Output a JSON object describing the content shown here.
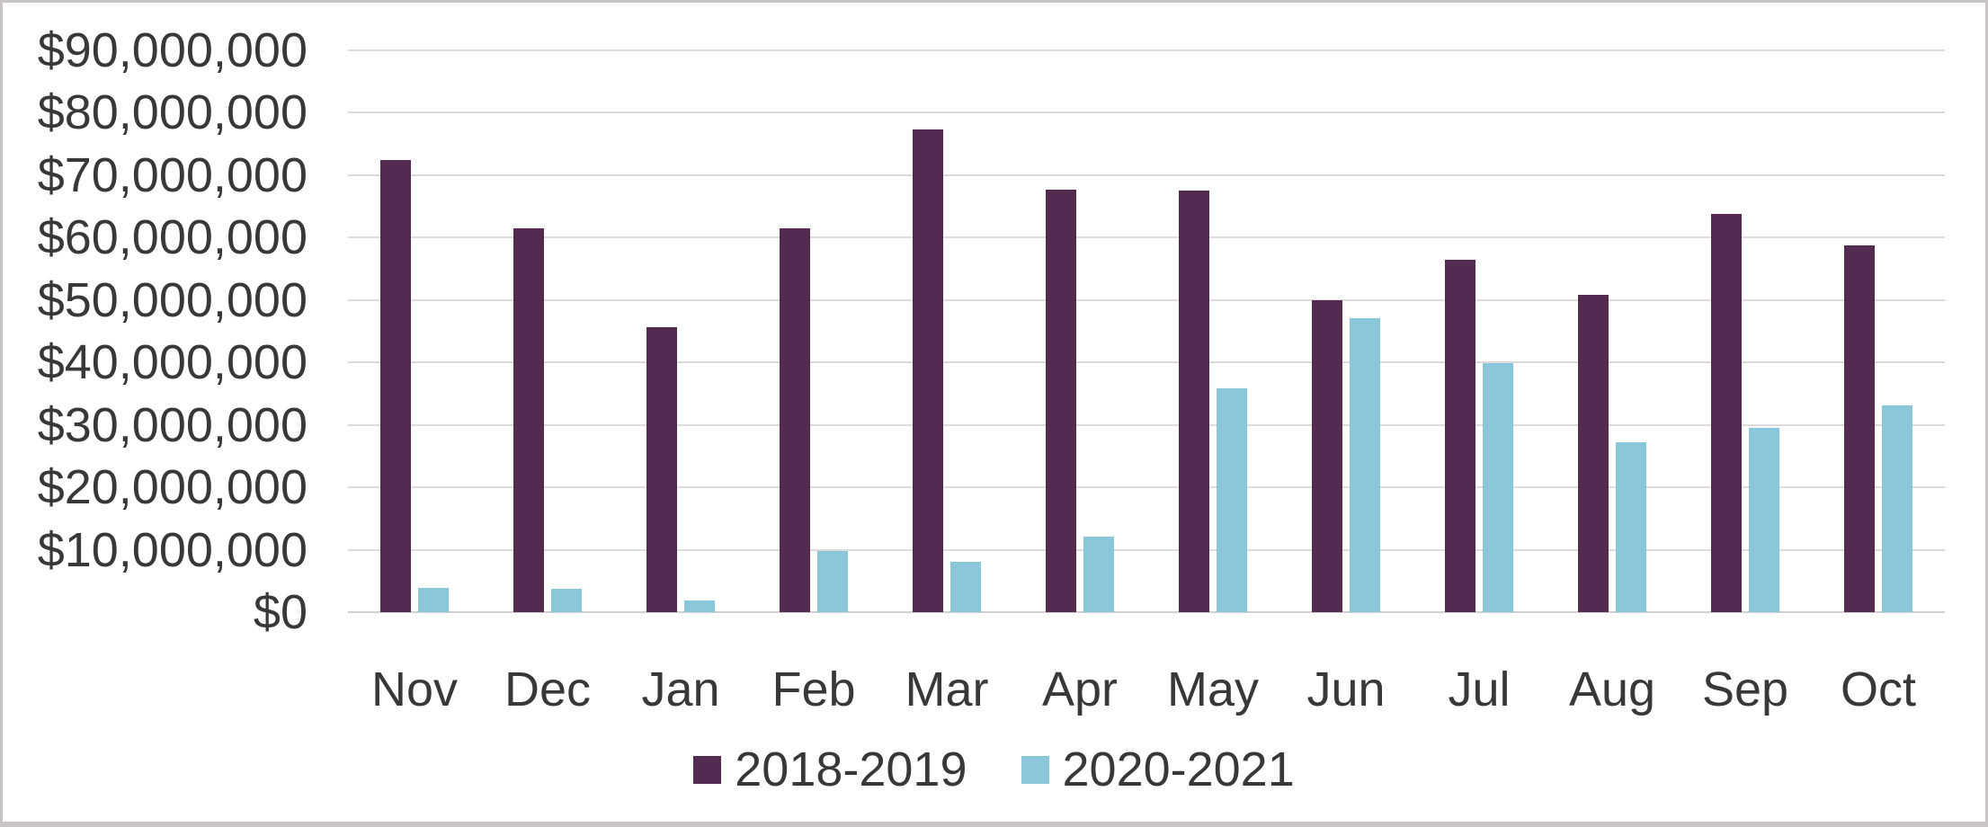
{
  "chart_data": {
    "type": "bar",
    "title": "",
    "xlabel": "",
    "ylabel": "",
    "categories": [
      "Nov",
      "Dec",
      "Jan",
      "Feb",
      "Mar",
      "Apr",
      "May",
      "Jun",
      "Jul",
      "Aug",
      "Sep",
      "Oct"
    ],
    "series": [
      {
        "name": "2018-2019",
        "color": "#552A50",
        "values": [
          72500000,
          61500000,
          45600000,
          61500000,
          77300000,
          67700000,
          67600000,
          49900000,
          56400000,
          50900000,
          63800000,
          58800000
        ]
      },
      {
        "name": "2020-2021",
        "color": "#8AC7DA",
        "values": [
          3900000,
          3700000,
          1900000,
          9800000,
          8100000,
          12100000,
          35800000,
          47100000,
          39900000,
          27200000,
          29500000,
          33100000
        ]
      }
    ],
    "ylim": [
      0,
      90000000
    ],
    "y_tick_interval": 10000000,
    "y_tick_labels": [
      "$90,000,000",
      "$80,000,000",
      "$70,000,000",
      "$60,000,000",
      "$50,000,000",
      "$40,000,000",
      "$30,000,000",
      "$20,000,000",
      "$10,000,000",
      "$0"
    ],
    "grid": true,
    "legend_position": "bottom"
  },
  "legend": {
    "items": [
      {
        "label": "2018-2019",
        "color": "#552A50"
      },
      {
        "label": "2020-2021",
        "color": "#8AC7DA"
      }
    ]
  },
  "colors": {
    "gridline": "#DDDADB",
    "axis_baseline": "#D2CFD0",
    "axis_text": "#383838",
    "frame_border": "#C8C4C6",
    "background": "#FFFFFF"
  }
}
